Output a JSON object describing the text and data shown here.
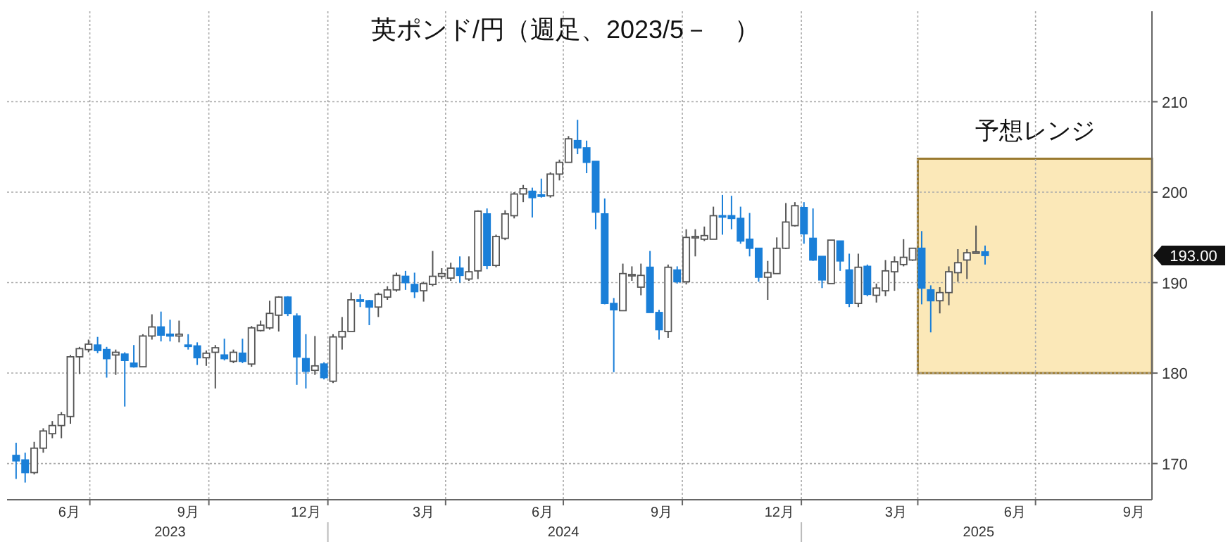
{
  "chart_data": {
    "type": "candlestick",
    "title": "英ポンド/円（週足、2023/5－　）",
    "colors": [
      "#1a7fd8",
      "#1a7fd8",
      "#ffffff",
      "#ffffff",
      "#ffffff",
      "#ffffff",
      "#ffffff",
      "#ffffff",
      "#ffffff",
      "#1a7fd8",
      "#1a7fd8",
      "#ffffff",
      "#1a7fd8",
      "#1a7fd8",
      "#ffffff",
      "#ffffff",
      "#1a7fd8",
      "#1a7fd8",
      "#ffffff",
      "#1a7fd8",
      "#1a7fd8",
      "#ffffff",
      "#ffffff",
      "#1a7fd8",
      "#ffffff",
      "#1a7fd8",
      "#ffffff",
      "#ffffff",
      "#ffffff",
      "#ffffff",
      "#1a7fd8",
      "#1a7fd8",
      "#1a7fd8",
      "#ffffff",
      "#1a7fd8",
      "#ffffff",
      "#ffffff",
      "#ffffff",
      "#1a7fd8",
      "#1a7fd8",
      "#ffffff",
      "#ffffff",
      "#ffffff",
      "#1a7fd8",
      "#1a7fd8",
      "#ffffff",
      "#ffffff",
      "#ffffff",
      "#ffffff",
      "#1a7fd8",
      "#ffffff",
      "#ffffff",
      "#1a7fd8",
      "#ffffff",
      "#ffffff",
      "#ffffff",
      "#ffffff",
      "#1a7fd8",
      "#1a7fd8",
      "#ffffff",
      "#ffffff",
      "#ffffff",
      "#1a7fd8",
      "#1a7fd8",
      "#1a7fd8",
      "#1a7fd8",
      "#1a7fd8",
      "#ffffff",
      "#ffffff",
      "#ffffff",
      "#1a7fd8",
      "#1a7fd8",
      "#ffffff",
      "#1a7fd8",
      "#ffffff",
      "#ffffff",
      "#ffffff",
      "#ffffff",
      "#1a7fd8",
      "#1a7fd8",
      "#1a7fd8",
      "#1a7fd8",
      "#1a7fd8",
      "#ffffff",
      "#ffffff",
      "#ffffff",
      "#ffffff",
      "#1a7fd8",
      "#1a7fd8",
      "#1a7fd8",
      "#ffffff",
      "#1a7fd8",
      "#1a7fd8",
      "#ffffff",
      "#1a7fd8",
      "#ffffff",
      "#ffffff",
      "#ffffff",
      "#ffffff",
      "#ffffff",
      "#1a7fd8",
      "#1a7fd8",
      "#ffffff",
      "#ffffff",
      "#ffffff",
      "#ffffff",
      "#ffffff",
      "#1a7fd8"
    ],
    "x": [
      "2023-05-05",
      "2023-05-12",
      "2023-05-19",
      "2023-05-26",
      "2023-06-02",
      "2023-06-09",
      "2023-06-16",
      "2023-06-23",
      "2023-06-30",
      "2023-07-07",
      "2023-07-14",
      "2023-07-21",
      "2023-07-28",
      "2023-08-04",
      "2023-08-11",
      "2023-08-18",
      "2023-08-25",
      "2023-09-01",
      "2023-09-08",
      "2023-09-15",
      "2023-09-22",
      "2023-09-29",
      "2023-10-06",
      "2023-10-13",
      "2023-10-20",
      "2023-10-27",
      "2023-11-03",
      "2023-11-10",
      "2023-11-17",
      "2023-11-24",
      "2023-12-01",
      "2023-12-08",
      "2023-12-15",
      "2023-12-22",
      "2023-12-29",
      "2024-01-05",
      "2024-01-12",
      "2024-01-19",
      "2024-01-26",
      "2024-02-02",
      "2024-02-09",
      "2024-02-16",
      "2024-02-23",
      "2024-03-01",
      "2024-03-08",
      "2024-03-15",
      "2024-03-22",
      "2024-03-29",
      "2024-04-05",
      "2024-04-12",
      "2024-04-19",
      "2024-04-26",
      "2024-05-03",
      "2024-05-10",
      "2024-05-17",
      "2024-05-24",
      "2024-05-31",
      "2024-06-07",
      "2024-06-14",
      "2024-06-21",
      "2024-06-28",
      "2024-07-05",
      "2024-07-12",
      "2024-07-19",
      "2024-07-26",
      "2024-08-02",
      "2024-08-09",
      "2024-08-16",
      "2024-08-23",
      "2024-08-30",
      "2024-09-06",
      "2024-09-13",
      "2024-09-20",
      "2024-09-27",
      "2024-10-04",
      "2024-10-11",
      "2024-10-18",
      "2024-10-25",
      "2024-11-01",
      "2024-11-08",
      "2024-11-15",
      "2024-11-22",
      "2024-11-29",
      "2024-12-06",
      "2024-12-13",
      "2024-12-20",
      "2024-12-27",
      "2025-01-03",
      "2025-01-10",
      "2025-01-17",
      "2025-01-24",
      "2025-01-31",
      "2025-02-07",
      "2025-02-14",
      "2025-02-21",
      "2025-02-28",
      "2025-03-07",
      "2025-03-14",
      "2025-03-21",
      "2025-03-28",
      "2025-04-04",
      "2025-04-11",
      "2025-04-18",
      "2025-04-25",
      "2025-05-02",
      "2025-05-09",
      "2025-05-16",
      "2025-05-23"
    ],
    "ohlc": [
      [
        170.9,
        172.3,
        168.3,
        170.3
      ],
      [
        170.4,
        171.2,
        167.9,
        169.0
      ],
      [
        169.0,
        172.4,
        168.8,
        171.7
      ],
      [
        171.7,
        173.9,
        171.2,
        173.6
      ],
      [
        173.3,
        174.7,
        172.8,
        174.2
      ],
      [
        174.2,
        175.7,
        172.8,
        175.4
      ],
      [
        175.2,
        182.0,
        174.4,
        181.8
      ],
      [
        181.8,
        182.9,
        179.9,
        182.7
      ],
      [
        182.6,
        183.7,
        182.3,
        183.2
      ],
      [
        183.1,
        184.0,
        182.2,
        182.5
      ],
      [
        182.6,
        182.9,
        179.5,
        181.6
      ],
      [
        182.0,
        182.6,
        179.8,
        182.3
      ],
      [
        182.1,
        182.3,
        176.3,
        181.4
      ],
      [
        181.1,
        183.1,
        180.6,
        180.7
      ],
      [
        180.7,
        184.3,
        180.7,
        184.1
      ],
      [
        184.1,
        186.5,
        183.7,
        185.1
      ],
      [
        185.1,
        186.8,
        183.5,
        184.2
      ],
      [
        184.3,
        185.9,
        183.5,
        184.1
      ],
      [
        184.1,
        185.8,
        183.4,
        184.3
      ],
      [
        183.1,
        184.3,
        182.6,
        183.0
      ],
      [
        183.0,
        183.4,
        180.9,
        181.7
      ],
      [
        181.7,
        182.5,
        180.8,
        182.2
      ],
      [
        182.3,
        183.1,
        178.3,
        182.8
      ],
      [
        182.0,
        183.8,
        181.4,
        181.6
      ],
      [
        181.3,
        182.6,
        181.1,
        182.3
      ],
      [
        182.2,
        183.8,
        181.1,
        181.3
      ],
      [
        181.0,
        185.2,
        180.7,
        185.0
      ],
      [
        184.7,
        185.8,
        184.6,
        185.3
      ],
      [
        185.0,
        188.0,
        184.8,
        186.6
      ],
      [
        186.4,
        188.5,
        184.6,
        188.4
      ],
      [
        188.4,
        188.5,
        186.3,
        186.6
      ],
      [
        186.3,
        186.6,
        178.7,
        181.8
      ],
      [
        181.6,
        184.3,
        178.3,
        180.2
      ],
      [
        180.3,
        184.1,
        179.8,
        180.8
      ],
      [
        181.0,
        181.2,
        179.3,
        179.5
      ],
      [
        179.1,
        184.3,
        178.9,
        184.0
      ],
      [
        184.0,
        186.2,
        182.6,
        184.6
      ],
      [
        184.6,
        188.9,
        184.6,
        188.1
      ],
      [
        188.1,
        188.7,
        187.3,
        188.0
      ],
      [
        188.0,
        188.1,
        185.3,
        187.3
      ],
      [
        187.3,
        188.9,
        186.2,
        188.7
      ],
      [
        188.4,
        189.6,
        188.1,
        189.2
      ],
      [
        189.2,
        191.1,
        189.0,
        190.8
      ],
      [
        190.7,
        191.3,
        189.2,
        190.0
      ],
      [
        189.8,
        191.1,
        188.3,
        189.0
      ],
      [
        189.1,
        190.1,
        187.9,
        189.9
      ],
      [
        189.8,
        193.5,
        189.6,
        190.7
      ],
      [
        190.7,
        191.6,
        190.4,
        191.0
      ],
      [
        190.5,
        192.2,
        190.2,
        191.6
      ],
      [
        191.6,
        192.9,
        190.0,
        190.8
      ],
      [
        190.4,
        192.9,
        190.2,
        191.2
      ],
      [
        191.3,
        198.0,
        190.4,
        197.9
      ],
      [
        197.6,
        198.2,
        191.5,
        191.9
      ],
      [
        191.9,
        195.3,
        191.7,
        195.1
      ],
      [
        194.9,
        198.0,
        194.7,
        197.6
      ],
      [
        197.4,
        200.0,
        197.1,
        199.8
      ],
      [
        199.8,
        200.8,
        198.9,
        200.4
      ],
      [
        200.1,
        200.5,
        197.2,
        199.4
      ],
      [
        199.7,
        201.5,
        199.4,
        199.6
      ],
      [
        199.6,
        202.2,
        199.4,
        202.0
      ],
      [
        202.0,
        203.6,
        201.3,
        203.3
      ],
      [
        203.3,
        206.2,
        203.3,
        205.9
      ],
      [
        205.7,
        208.0,
        204.2,
        204.9
      ],
      [
        204.9,
        205.7,
        202.1,
        203.3
      ],
      [
        203.4,
        203.4,
        195.9,
        197.8
      ],
      [
        197.6,
        199.3,
        187.6,
        187.7
      ],
      [
        187.7,
        188.3,
        180.1,
        187.0
      ],
      [
        186.9,
        192.1,
        186.9,
        191.0
      ],
      [
        190.9,
        191.8,
        190.2,
        190.9
      ],
      [
        189.5,
        192.1,
        188.6,
        190.8
      ],
      [
        191.7,
        193.5,
        186.7,
        186.7
      ],
      [
        186.7,
        187.0,
        183.7,
        184.8
      ],
      [
        184.6,
        192.0,
        183.9,
        191.7
      ],
      [
        191.4,
        191.8,
        189.9,
        190.1
      ],
      [
        190.1,
        195.9,
        189.8,
        195.0
      ],
      [
        195.1,
        195.9,
        192.9,
        195.1
      ],
      [
        194.8,
        196.2,
        194.6,
        195.2
      ],
      [
        194.8,
        198.4,
        194.8,
        197.4
      ],
      [
        197.4,
        199.7,
        195.3,
        197.3
      ],
      [
        197.4,
        199.6,
        195.9,
        197.1
      ],
      [
        197.1,
        198.4,
        194.3,
        194.6
      ],
      [
        194.8,
        197.7,
        192.9,
        193.8
      ],
      [
        193.8,
        193.8,
        190.1,
        190.6
      ],
      [
        190.6,
        192.4,
        188.1,
        191.1
      ],
      [
        191.0,
        195.0,
        191.0,
        193.8
      ],
      [
        193.8,
        198.8,
        193.7,
        196.7
      ],
      [
        196.3,
        198.9,
        196.2,
        198.5
      ],
      [
        198.3,
        198.9,
        194.3,
        195.4
      ],
      [
        194.9,
        198.2,
        192.4,
        192.5
      ],
      [
        192.9,
        192.9,
        189.4,
        190.3
      ],
      [
        189.9,
        194.7,
        189.9,
        194.7
      ],
      [
        194.6,
        194.6,
        191.3,
        192.4
      ],
      [
        191.4,
        193.2,
        187.3,
        187.7
      ],
      [
        187.7,
        193.2,
        187.3,
        191.7
      ],
      [
        191.8,
        192.0,
        188.5,
        188.7
      ],
      [
        188.6,
        189.9,
        187.8,
        189.4
      ],
      [
        189.1,
        192.5,
        188.5,
        191.3
      ],
      [
        191.2,
        192.9,
        189.1,
        192.3
      ],
      [
        192.0,
        194.8,
        191.8,
        192.8
      ],
      [
        192.5,
        193.8,
        192.4,
        193.8
      ],
      [
        193.8,
        195.7,
        187.6,
        189.4
      ],
      [
        189.2,
        189.7,
        184.5,
        188.0
      ],
      [
        188.0,
        189.5,
        186.6,
        188.9
      ],
      [
        188.9,
        191.8,
        187.5,
        191.2
      ],
      [
        191.1,
        193.7,
        190.1,
        192.2
      ],
      [
        192.5,
        193.7,
        190.4,
        193.3
      ],
      [
        193.4,
        196.3,
        193.3,
        193.4
      ],
      [
        193.4,
        194.1,
        192.0,
        193.0
      ]
    ],
    "xlim": [
      "2023-04-28",
      "2025-09-29"
    ],
    "xticks": [
      {
        "value": "2023-06-15",
        "label": "6月"
      },
      {
        "value": "2023-07-01",
        "label": null
      },
      {
        "value": "2023-09-15",
        "label": "9月"
      },
      {
        "value": "2023-10-01",
        "label": null
      },
      {
        "value": "2023-12-15",
        "label": "12月"
      },
      {
        "value": "2024-01-01",
        "label": null
      },
      {
        "value": "2024-03-15",
        "label": "3月"
      },
      {
        "value": "2024-04-01",
        "label": null
      },
      {
        "value": "2024-06-15",
        "label": "6月"
      },
      {
        "value": "2024-07-01",
        "label": null
      },
      {
        "value": "2024-09-15",
        "label": "9月"
      },
      {
        "value": "2024-10-01",
        "label": null
      },
      {
        "value": "2024-12-15",
        "label": "12月"
      },
      {
        "value": "2025-01-01",
        "label": null
      },
      {
        "value": "2025-03-15",
        "label": "3月"
      },
      {
        "value": "2025-04-01",
        "label": null
      },
      {
        "value": "2025-06-15",
        "label": "6月"
      },
      {
        "value": "2025-07-01",
        "label": null
      },
      {
        "value": "2025-09-15",
        "label": "9月"
      }
    ],
    "x2lim": [
      "2023-04-28",
      "2025-09-29"
    ],
    "x2ticks": [
      {
        "value": "2023-09-01",
        "label": "2023"
      },
      {
        "value": "2024-01-01",
        "label": null
      },
      {
        "value": "2024-07-01",
        "label": "2024"
      },
      {
        "value": "2025-01-01",
        "label": null
      },
      {
        "value": "2025-05-18",
        "label": "2025"
      }
    ],
    "ylim": [
      166,
      220
    ],
    "yticks": [
      170,
      180,
      190,
      200,
      210
    ],
    "grid": true,
    "bands": [
      {
        "axis": "y",
        "from": 180,
        "to": 203.7,
        "label": "予想レンジ",
        "color": "#fbe8b8"
      }
    ],
    "annotations": [
      "193.00"
    ]
  }
}
